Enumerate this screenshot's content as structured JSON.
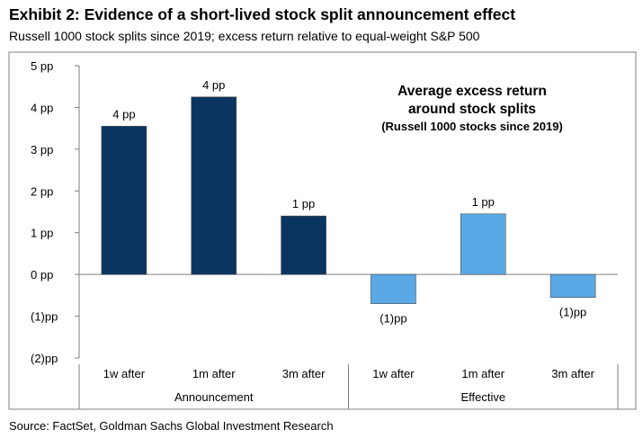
{
  "header": {
    "title": "Exhibit 2: Evidence of a short-lived stock split announcement effect",
    "subtitle": "Russell 1000 stock splits since 2019; excess return relative to equal-weight S&P 500"
  },
  "footer": {
    "source": "Source: FactSet, Goldman Sachs Global Investment Research"
  },
  "chart_data": {
    "type": "bar",
    "annotation": {
      "line1": "Average excess return",
      "line2": "around stock splits",
      "line3": "(Russell 1000 stocks since 2019)"
    },
    "categories": [
      "1w after",
      "1m after",
      "3m after",
      "1w after",
      "1m after",
      "3m after"
    ],
    "groups": [
      {
        "label": "Announcement",
        "start": 0,
        "end": 2
      },
      {
        "label": "Effective",
        "start": 3,
        "end": 5
      }
    ],
    "values": [
      3.55,
      4.25,
      1.4,
      -0.7,
      1.45,
      -0.55
    ],
    "data_labels": [
      "4 pp",
      "4 pp",
      "1 pp",
      "(1)pp",
      "1 pp",
      "(1)pp"
    ],
    "colors": [
      "#0b3561",
      "#0b3561",
      "#0b3561",
      "#5aa9e6",
      "#5aa9e6",
      "#5aa9e6"
    ],
    "ylim": [
      -2,
      5
    ],
    "yticks": [
      5,
      4,
      3,
      2,
      1,
      0,
      -1,
      -2
    ],
    "ytick_labels": [
      "5 pp",
      "4 pp",
      "3 pp",
      "2 pp",
      "1 pp",
      "0 pp",
      "(1)pp",
      "(2)pp"
    ],
    "grid": false,
    "legend": "none"
  }
}
